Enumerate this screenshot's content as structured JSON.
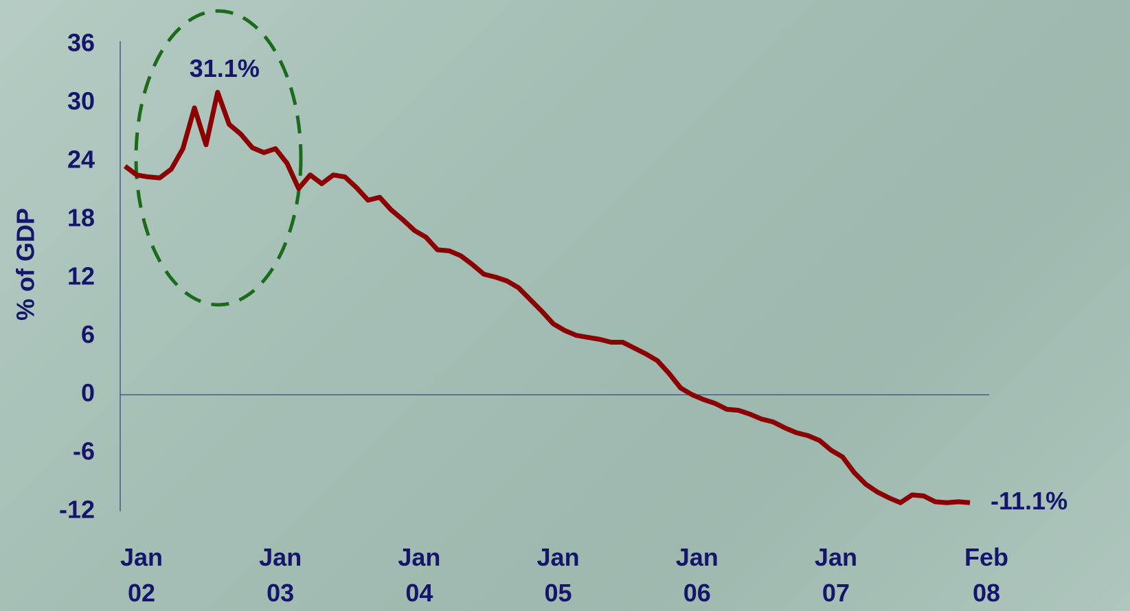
{
  "chart_data": {
    "type": "line",
    "ylabel": "% of GDP",
    "categories": [
      "Jan 02",
      null,
      null,
      null,
      null,
      null,
      null,
      null,
      null,
      null,
      null,
      null,
      "Jan 03",
      null,
      null,
      null,
      null,
      null,
      null,
      null,
      null,
      null,
      null,
      null,
      "Jan 04",
      null,
      null,
      null,
      null,
      null,
      null,
      null,
      null,
      null,
      null,
      null,
      "Jan 05",
      null,
      null,
      null,
      null,
      null,
      null,
      null,
      null,
      null,
      null,
      null,
      "Jan 06",
      null,
      null,
      null,
      null,
      null,
      null,
      null,
      null,
      null,
      null,
      null,
      "Jan 07",
      null,
      null,
      null,
      null,
      null,
      null,
      null,
      null,
      null,
      null,
      null,
      null,
      "Feb 08"
    ],
    "series": [
      {
        "color": "#8b0000",
        "values": [
          23.5,
          22.6,
          22.4,
          22.3,
          23.2,
          25.3,
          29.5,
          25.7,
          31.1,
          27.8,
          26.8,
          25.4,
          24.9,
          25.3,
          23.8,
          21.2,
          22.6,
          21.7,
          22.6,
          22.4,
          21.3,
          20.0,
          20.3,
          19.0,
          18.0,
          16.9,
          16.2,
          14.9,
          14.8,
          14.3,
          13.4,
          12.4,
          12.1,
          11.7,
          11.0,
          9.8,
          8.6,
          7.3,
          6.6,
          6.1,
          5.9,
          5.7,
          5.4,
          5.4,
          4.8,
          4.2,
          3.5,
          2.2,
          0.7,
          0.0,
          -0.5,
          -0.9,
          -1.5,
          -1.6,
          -2.0,
          -2.5,
          -2.8,
          -3.4,
          -3.9,
          -4.2,
          -4.7,
          -5.7,
          -6.4,
          -8.0,
          -9.2,
          -10.0,
          -10.6,
          -11.1,
          -10.3,
          -10.4,
          -11.0,
          -11.1,
          -11.0,
          -11.1
        ],
        "value_labels": [
          null,
          null,
          null,
          null,
          null,
          null,
          null,
          null,
          "31.1%",
          null,
          null,
          null,
          null,
          null,
          null,
          null,
          null,
          null,
          null,
          null,
          null,
          null,
          null,
          null,
          null,
          null,
          null,
          null,
          null,
          null,
          null,
          null,
          null,
          null,
          null,
          null,
          null,
          null,
          null,
          null,
          null,
          null,
          null,
          null,
          null,
          null,
          null,
          null,
          null,
          null,
          null,
          null,
          null,
          null,
          null,
          null,
          null,
          null,
          null,
          null,
          null,
          null,
          null,
          null,
          null,
          null,
          null,
          null,
          null,
          null,
          null,
          null,
          null,
          "-11.1%"
        ]
      }
    ],
    "ylim": [
      -12,
      36
    ],
    "yticks": [
      -12,
      -6,
      0,
      6,
      12,
      18,
      24,
      30,
      36
    ]
  }
}
